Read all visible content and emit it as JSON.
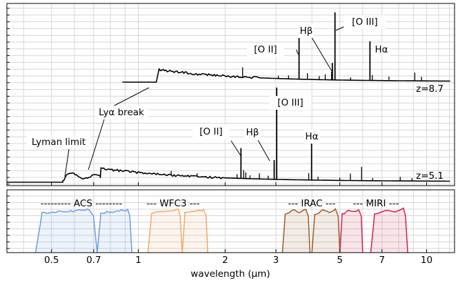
{
  "chart_data": {
    "type": "line",
    "xscale": "log",
    "xlim": [
      0.35,
      12.5
    ],
    "xlabel": "wavelength (μm)",
    "xticks": [
      0.5,
      0.7,
      1,
      2,
      3,
      5,
      7,
      10
    ],
    "xtick_labels": [
      "0.5",
      "0.7",
      "1",
      "2",
      "3",
      "5",
      "7",
      "10"
    ],
    "spectra": [
      {
        "name": "z=8.7",
        "redshift": 8.7,
        "lya_break_um": 1.18,
        "start_um": 0.88,
        "continuum_start": 0.45,
        "lines": [
          {
            "label": "[O II]",
            "um": 3.61,
            "height": 0.74
          },
          {
            "label": "Hβ",
            "um": 4.71,
            "height": 0.25
          },
          {
            "label": "[O III]",
            "um": 4.81,
            "height": 1.0
          },
          {
            "label": "Hα",
            "um": 6.36,
            "height": 0.58
          }
        ]
      },
      {
        "name": "z=5.1",
        "redshift": 5.1,
        "lyman_limit_um": 0.556,
        "lya_break_um": 0.742,
        "start_um": 0.35,
        "lines": [
          {
            "label": "[O II]",
            "um": 2.27,
            "height": 0.33
          },
          {
            "label": "Hβ",
            "um": 2.96,
            "height": 0.21
          },
          {
            "label": "[O III]",
            "um": 3.02,
            "height": 1.0
          },
          {
            "label": "Hα",
            "um": 3.99,
            "height": 0.45
          }
        ]
      }
    ],
    "annotations": {
      "lyman_limit": "Lyman limit",
      "lya_break": "Lyα break"
    },
    "filters": [
      {
        "instrument": "ACS",
        "label": "--------- ACS --------",
        "color": "#6c9be0",
        "bands": [
          [
            0.44,
            0.72
          ],
          [
            0.72,
            0.95
          ]
        ]
      },
      {
        "instrument": "WFC3",
        "label": "--- WFC3 ---",
        "color": "#f0a868",
        "bands": [
          [
            1.08,
            1.42
          ],
          [
            1.42,
            1.74
          ]
        ]
      },
      {
        "instrument": "IRAC",
        "label": "--- IRAC ---",
        "color": "#9a5a2a",
        "bands": [
          [
            3.16,
            3.94
          ],
          [
            4.0,
            5.0
          ]
        ]
      },
      {
        "instrument": "MIRI",
        "label": "--- MIRI ---",
        "color": "#d0204c",
        "bands": [
          [
            5.0,
            6.0
          ],
          [
            6.4,
            8.6
          ]
        ]
      }
    ]
  }
}
